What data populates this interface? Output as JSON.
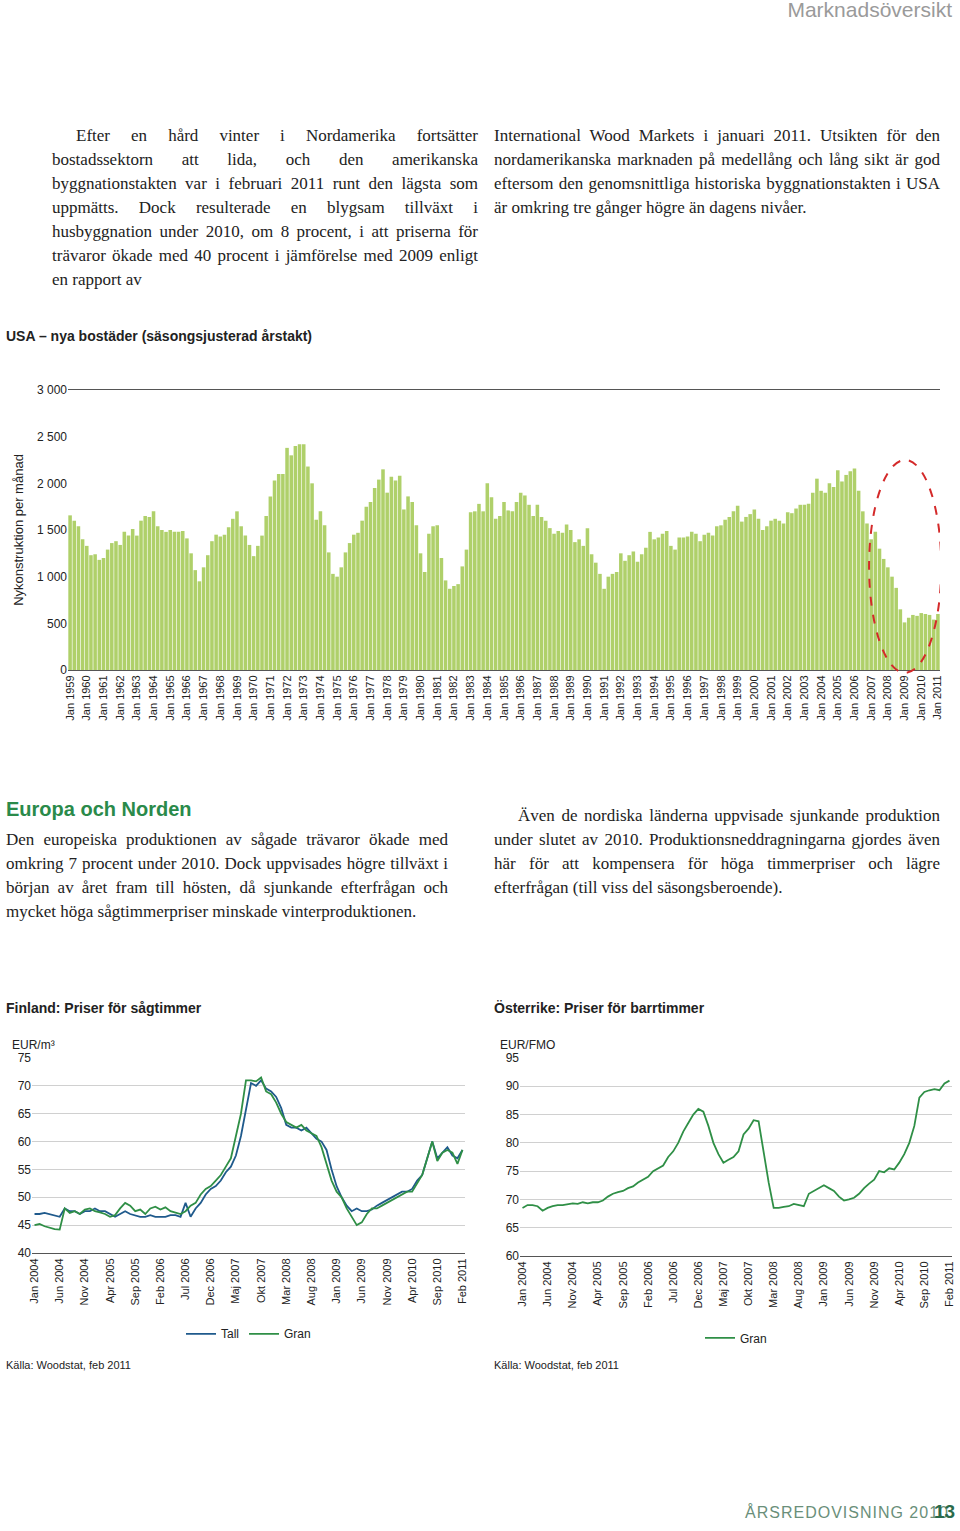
{
  "header": {
    "section": "Marknadsöversikt"
  },
  "intro": [
    "Efter en hård vinter i Nordamerika fortsätter bostadssektorn att lida, och den amerikanska byggnationstakten var i februari 2011 runt den lägsta som uppmätts. Dock resulterade en blygsam tillväxt i husbyggnation under 2010, om 8 procent, i att priserna för trävaror ökade med 40 procent i jämförelse med 2009 enligt en rapport av",
    "International Wood Markets i januari 2011. Utsikten för den nordamerikanska marknaden på medellång och lång sikt är god eftersom den genomsnittliga historiska byggnationstakten i USA är omkring tre gånger högre än dagens nivåer."
  ],
  "section": {
    "heading": "Europa och Norden",
    "columns": [
      "Den europeiska produktionen av sågade trävaror ökade med omkring 7 procent under 2010. Dock uppvisades högre tillväxt i början av året fram till hösten, då sjunkande efterfrågan och mycket höga sågtimmerpriser minskade vinterproduktionen.",
      "Även de nordiska länderna uppvisade sjunkande produktion under slutet av 2010. Produktionsneddragningarna gjordes även här för att kompensera för höga timmerpriser och lägre efterfrågan (till viss del säsongsberoende)."
    ]
  },
  "chart_data": [
    {
      "type": "bar",
      "title": "USA – nya bostäder (säsongsjusterad årstakt)",
      "y_label": "Nykonstruktion per månad",
      "color": "#afd06a",
      "categories": [
        "Jan 1959",
        null,
        null,
        null,
        "Jan 1960",
        null,
        null,
        null,
        "Jan 1961",
        null,
        null,
        null,
        "Jan 1962",
        null,
        null,
        null,
        "Jan 1963",
        null,
        null,
        null,
        "Jan 1964",
        null,
        null,
        null,
        "Jan 1965",
        null,
        null,
        null,
        "Jan 1966",
        null,
        null,
        null,
        "Jan 1967",
        null,
        null,
        null,
        "Jan 1968",
        null,
        null,
        null,
        "Jan 1969",
        null,
        null,
        null,
        "Jan 1970",
        null,
        null,
        null,
        "Jan 1971",
        null,
        null,
        null,
        "Jan 1972",
        null,
        null,
        null,
        "Jan 1973",
        null,
        null,
        null,
        "Jan 1974",
        null,
        null,
        null,
        "Jan 1975",
        null,
        null,
        null,
        "Jan 1976",
        null,
        null,
        null,
        "Jan 1977",
        null,
        null,
        null,
        "Jan 1978",
        null,
        null,
        null,
        "Jan 1979",
        null,
        null,
        null,
        "Jan 1980",
        null,
        null,
        null,
        "Jan 1981",
        null,
        null,
        null,
        "Jan 1982",
        null,
        null,
        null,
        "Jan 1983",
        null,
        null,
        null,
        "Jan 1984",
        null,
        null,
        null,
        "Jan 1985",
        null,
        null,
        null,
        "Jan 1986",
        null,
        null,
        null,
        "Jan 1987",
        null,
        null,
        null,
        "Jan 1988",
        null,
        null,
        null,
        "Jan 1989",
        null,
        null,
        null,
        "Jan 1990",
        null,
        null,
        null,
        "Jan 1991",
        null,
        null,
        null,
        "Jan 1992",
        null,
        null,
        null,
        "Jan 1993",
        null,
        null,
        null,
        "Jan 1994",
        null,
        null,
        null,
        "Jan 1995",
        null,
        null,
        null,
        "Jan 1996",
        null,
        null,
        null,
        "Jan 1997",
        null,
        null,
        null,
        "Jan 1998",
        null,
        null,
        null,
        "Jan 1999",
        null,
        null,
        null,
        "Jan 2000",
        null,
        null,
        null,
        "Jan 2001",
        null,
        null,
        null,
        "Jan 2002",
        null,
        null,
        null,
        "Jan 2003",
        null,
        null,
        null,
        "Jan 2004",
        null,
        null,
        null,
        "Jan 2005",
        null,
        null,
        null,
        "Jan 2006",
        null,
        null,
        null,
        "Jan 2007",
        null,
        null,
        null,
        "Jan 2008",
        null,
        null,
        null,
        "Jan 2009",
        null,
        null,
        null,
        "Jan 2010",
        null,
        null,
        null,
        "Jan 2011"
      ],
      "values": [
        1657,
        1600,
        1540,
        1400,
        1330,
        1230,
        1240,
        1180,
        1200,
        1290,
        1360,
        1380,
        1340,
        1480,
        1440,
        1510,
        1440,
        1600,
        1650,
        1640,
        1700,
        1540,
        1500,
        1480,
        1500,
        1480,
        1480,
        1490,
        1410,
        1250,
        1070,
        950,
        1100,
        1230,
        1380,
        1450,
        1430,
        1450,
        1530,
        1620,
        1700,
        1540,
        1440,
        1340,
        1220,
        1330,
        1440,
        1650,
        1860,
        2030,
        2100,
        2100,
        2380,
        2300,
        2400,
        2420,
        2420,
        2180,
        2000,
        1610,
        1700,
        1550,
        1260,
        1030,
        1000,
        1100,
        1260,
        1360,
        1450,
        1470,
        1600,
        1750,
        1800,
        1950,
        2040,
        2150,
        1900,
        2070,
        2030,
        2080,
        1720,
        1860,
        1800,
        1550,
        1250,
        1050,
        1460,
        1540,
        1550,
        1200,
        960,
        870,
        900,
        920,
        1110,
        1290,
        1690,
        1700,
        1780,
        1700,
        2000,
        1850,
        1620,
        1650,
        1800,
        1710,
        1700,
        1800,
        1900,
        1870,
        1770,
        1650,
        1770,
        1640,
        1600,
        1520,
        1460,
        1490,
        1470,
        1560,
        1500,
        1370,
        1400,
        1330,
        1520,
        1240,
        1150,
        1030,
        870,
        1000,
        1030,
        1050,
        1250,
        1170,
        1230,
        1270,
        1160,
        1240,
        1310,
        1480,
        1400,
        1420,
        1460,
        1490,
        1330,
        1290,
        1420,
        1420,
        1430,
        1480,
        1460,
        1380,
        1450,
        1470,
        1440,
        1540,
        1550,
        1610,
        1640,
        1700,
        1760,
        1590,
        1640,
        1670,
        1720,
        1620,
        1500,
        1540,
        1600,
        1620,
        1600,
        1570,
        1690,
        1680,
        1730,
        1770,
        1770,
        1780,
        1900,
        2050,
        1920,
        1900,
        2000,
        1960,
        2140,
        2020,
        2090,
        2130,
        2160,
        1920,
        1700,
        1570,
        1400,
        1480,
        1300,
        1190,
        1100,
        1000,
        880,
        650,
        510,
        560,
        590,
        580,
        610,
        600,
        590,
        540,
        600
      ],
      "ylim": [
        0,
        3000
      ],
      "yticks": [
        0,
        500,
        {
          "value": 1000,
          "label": "1 000"
        },
        {
          "value": 1500,
          "label": "1 500"
        },
        {
          "value": 2000,
          "label": "2 000"
        },
        {
          "value": 2500,
          "label": "2 500"
        },
        {
          "value": 3000,
          "label": "3 000"
        }
      ],
      "grid": false
    },
    {
      "type": "line",
      "title": "Finland: Priser för sågtimmer",
      "y_label": "EUR/m³",
      "source": "Källa: Woodstat, feb 2011",
      "legend": "bottom",
      "categories": [
        "Jan 2004",
        null,
        null,
        null,
        null,
        "Jun 2004",
        null,
        null,
        null,
        null,
        "Nov 2004",
        null,
        null,
        null,
        null,
        "Apr 2005",
        null,
        null,
        null,
        null,
        "Sep 2005",
        null,
        null,
        null,
        null,
        "Feb 2006",
        null,
        null,
        null,
        null,
        "Jul 2006",
        null,
        null,
        null,
        null,
        "Dec 2006",
        null,
        null,
        null,
        null,
        "Maj 2007",
        null,
        null,
        null,
        null,
        "Okt 2007",
        null,
        null,
        null,
        null,
        "Mar 2008",
        null,
        null,
        null,
        null,
        "Aug 2008",
        null,
        null,
        null,
        null,
        "Jan 2009",
        null,
        null,
        null,
        null,
        "Jun 2009",
        null,
        null,
        null,
        null,
        "Nov 2009",
        null,
        null,
        null,
        null,
        "Apr 2010",
        null,
        null,
        null,
        null,
        "Sep 2010",
        null,
        null,
        null,
        null,
        "Feb 2011"
      ],
      "series": [
        {
          "name": "Tall",
          "color": "#1f5a8c",
          "values": [
            47,
            47,
            47.2,
            47,
            46.8,
            46.5,
            48,
            47.5,
            47.5,
            47,
            47.5,
            47.5,
            48,
            47.5,
            47.5,
            47,
            46.5,
            47,
            47.5,
            47,
            46.8,
            46.5,
            46.5,
            46.8,
            46.5,
            46.5,
            46.5,
            46.8,
            46.8,
            46.5,
            49,
            46.5,
            48,
            49,
            50.5,
            51.5,
            52,
            53,
            54.5,
            55.5,
            57.5,
            61,
            66,
            70.5,
            70,
            71,
            69.5,
            69,
            68,
            66,
            63,
            62.5,
            62.5,
            62,
            62.5,
            61.5,
            60.5,
            60,
            58.5,
            55,
            52,
            50,
            48.5,
            47.5,
            48,
            47.5,
            47.5,
            47.8,
            48.5,
            49,
            49.5,
            50,
            50.5,
            51,
            51,
            51.5,
            53,
            54,
            57,
            60,
            57,
            58,
            59,
            57.5,
            57,
            58.5
          ]
        },
        {
          "name": "Gran",
          "color": "#2f8f46",
          "values": [
            45,
            45.2,
            44.8,
            44.5,
            44.3,
            44.2,
            48,
            47.2,
            47.5,
            47,
            47.8,
            48,
            47.5,
            47.3,
            47,
            46.5,
            46.8,
            48,
            49,
            48.5,
            47.5,
            47.8,
            47,
            48,
            48.3,
            47.8,
            48.2,
            47.5,
            47.2,
            47,
            47.5,
            48.5,
            49,
            50.5,
            51.5,
            52,
            53,
            54,
            55.5,
            57,
            61,
            65,
            71,
            71,
            70.8,
            71.5,
            69,
            68.5,
            67,
            65,
            63.5,
            63,
            62.5,
            63,
            62,
            61.5,
            61,
            59,
            56,
            53,
            51,
            50,
            48,
            46.5,
            45,
            45.5,
            47,
            48,
            48,
            48.5,
            49,
            49.5,
            50,
            50.5,
            51,
            51,
            52.5,
            54,
            57,
            60,
            56.5,
            58,
            58.5,
            58,
            56,
            58.5
          ]
        }
      ],
      "ylim": [
        40,
        75
      ],
      "yticks": [
        40,
        45,
        50,
        55,
        60,
        65,
        70,
        75
      ],
      "grid": true
    },
    {
      "type": "line",
      "title": "Österrike: Priser för barrtimmer",
      "y_label": "EUR/FMO",
      "source": "Källa: Woodstat, feb 2011",
      "legend": "bottom",
      "categories": [
        "Jan 2004",
        null,
        null,
        null,
        null,
        "Jun 2004",
        null,
        null,
        null,
        null,
        "Nov 2004",
        null,
        null,
        null,
        null,
        "Apr 2005",
        null,
        null,
        null,
        null,
        "Sep 2005",
        null,
        null,
        null,
        null,
        "Feb 2006",
        null,
        null,
        null,
        null,
        "Jul 2006",
        null,
        null,
        null,
        null,
        "Dec 2006",
        null,
        null,
        null,
        null,
        "Maj 2007",
        null,
        null,
        null,
        null,
        "Okt 2007",
        null,
        null,
        null,
        null,
        "Mar 2008",
        null,
        null,
        null,
        null,
        "Aug 2008",
        null,
        null,
        null,
        null,
        "Jan 2009",
        null,
        null,
        null,
        null,
        "Jun 2009",
        null,
        null,
        null,
        null,
        "Nov 2009",
        null,
        null,
        null,
        null,
        "Apr 2010",
        null,
        null,
        null,
        null,
        "Sep 2010",
        null,
        null,
        null,
        null,
        "Feb 2011"
      ],
      "series": [
        {
          "name": "Gran",
          "color": "#2f8f46",
          "values": [
            68.5,
            69,
            69,
            68.8,
            68,
            68.5,
            68.8,
            69,
            69,
            69.2,
            69.3,
            69.2,
            69.5,
            69.3,
            69.5,
            69.5,
            69.8,
            70.5,
            71,
            71.3,
            71.5,
            72,
            72.3,
            73,
            73.5,
            74,
            75,
            75.5,
            76,
            77.5,
            78.5,
            80,
            82,
            83.5,
            85,
            86,
            85.5,
            83,
            80,
            78,
            76.5,
            77,
            77.5,
            78.5,
            81.5,
            82.5,
            84,
            83.8,
            78,
            73,
            68.5,
            68.5,
            68.7,
            68.8,
            69.2,
            69,
            68.8,
            71,
            71.5,
            72,
            72.5,
            72,
            71.5,
            70.5,
            69.8,
            70,
            70.3,
            71,
            72,
            72.8,
            73.5,
            75,
            74.8,
            75.5,
            75.3,
            76.5,
            78,
            80,
            83,
            88,
            89,
            89.3,
            89.5,
            89.3,
            90.5,
            91
          ]
        }
      ],
      "ylim": [
        60,
        95
      ],
      "yticks": [
        60,
        65,
        70,
        75,
        80,
        85,
        90,
        95
      ],
      "grid": true
    }
  ],
  "footer": {
    "text": "ÅRSREDOVISNING 2010",
    "page": 13
  }
}
